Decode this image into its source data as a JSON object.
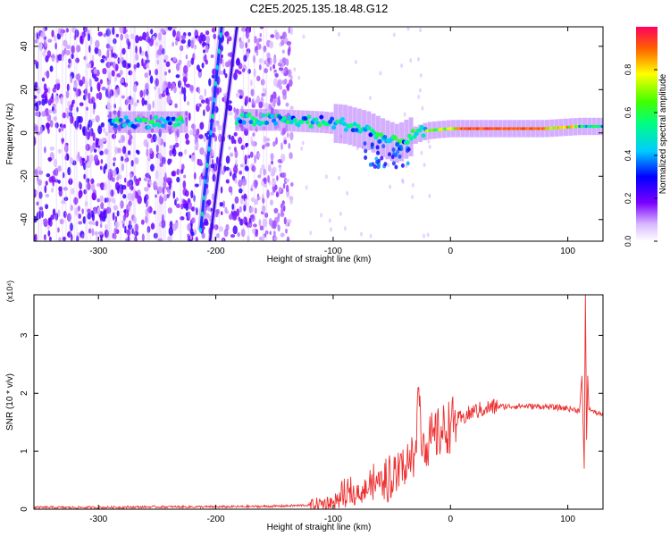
{
  "title": "C2E5.2025.135.18.48.G12",
  "chart_data": [
    {
      "type": "heatmap",
      "xlabel": "Height of straight line (km)",
      "ylabel": "Frequency (Hz)",
      "xlim": [
        -355,
        130
      ],
      "ylim": [
        -50,
        49
      ],
      "xticks": [
        -300,
        -200,
        -100,
        0,
        100
      ],
      "yticks": [
        -40,
        -20,
        0,
        20,
        40
      ],
      "colorbar": {
        "label": "Normalized spectral amplitude",
        "range": [
          0,
          1
        ],
        "ticks": [
          0.0,
          0.2,
          0.4,
          0.6,
          0.8
        ]
      },
      "features": {
        "noise_region_x": [
          -355,
          -135
        ],
        "main_ridge": [
          {
            "x": -290,
            "y": 5
          },
          {
            "x": -230,
            "y": 5
          },
          {
            "x": -180,
            "y": 6
          },
          {
            "x": -150,
            "y": 6
          },
          {
            "x": -110,
            "y": 5
          },
          {
            "x": -90,
            "y": 4
          },
          {
            "x": -70,
            "y": 1
          },
          {
            "x": -55,
            "y": -3
          },
          {
            "x": -45,
            "y": -5
          },
          {
            "x": -35,
            "y": -2
          },
          {
            "x": -20,
            "y": 1
          },
          {
            "x": 0,
            "y": 2
          },
          {
            "x": 40,
            "y": 2
          },
          {
            "x": 80,
            "y": 2
          },
          {
            "x": 110,
            "y": 3
          },
          {
            "x": 130,
            "y": 3
          }
        ],
        "diagonal_streaks": [
          {
            "x1": -213,
            "y1": -45,
            "x2": -195,
            "y2": 49
          },
          {
            "x1": -205,
            "y1": -50,
            "x2": -182,
            "y2": 49
          }
        ]
      }
    },
    {
      "type": "line",
      "xlabel": "Height of straight line (km)",
      "ylabel": "SNR (10 * v/v)",
      "multiplier": "(x10⁴)",
      "xlim": [
        -355,
        130
      ],
      "ylim": [
        0,
        3.7
      ],
      "xticks": [
        -300,
        -200,
        -100,
        0,
        100
      ],
      "yticks": [
        0,
        1,
        2,
        3
      ],
      "series": [
        {
          "color": "#ee3030",
          "x": [
            -355,
            -300,
            -250,
            -200,
            -150,
            -120,
            -100,
            -90,
            -80,
            -70,
            -60,
            -50,
            -45,
            -40,
            -35,
            -30,
            -27,
            -25,
            -20,
            -15,
            -10,
            -5,
            0,
            10,
            20,
            30,
            40,
            60,
            80,
            100,
            110,
            112,
            114,
            115,
            116,
            117,
            118,
            120,
            130
          ],
          "y": [
            0.03,
            0.03,
            0.04,
            0.04,
            0.05,
            0.07,
            0.12,
            0.2,
            0.28,
            0.35,
            0.42,
            0.5,
            0.6,
            0.7,
            0.85,
            1.0,
            2.1,
            1.1,
            1.15,
            1.25,
            1.3,
            1.38,
            1.45,
            1.58,
            1.68,
            1.74,
            1.77,
            1.78,
            1.77,
            1.74,
            1.7,
            2.3,
            0.7,
            3.7,
            1.2,
            2.3,
            1.72,
            1.7,
            1.62
          ]
        }
      ]
    }
  ]
}
